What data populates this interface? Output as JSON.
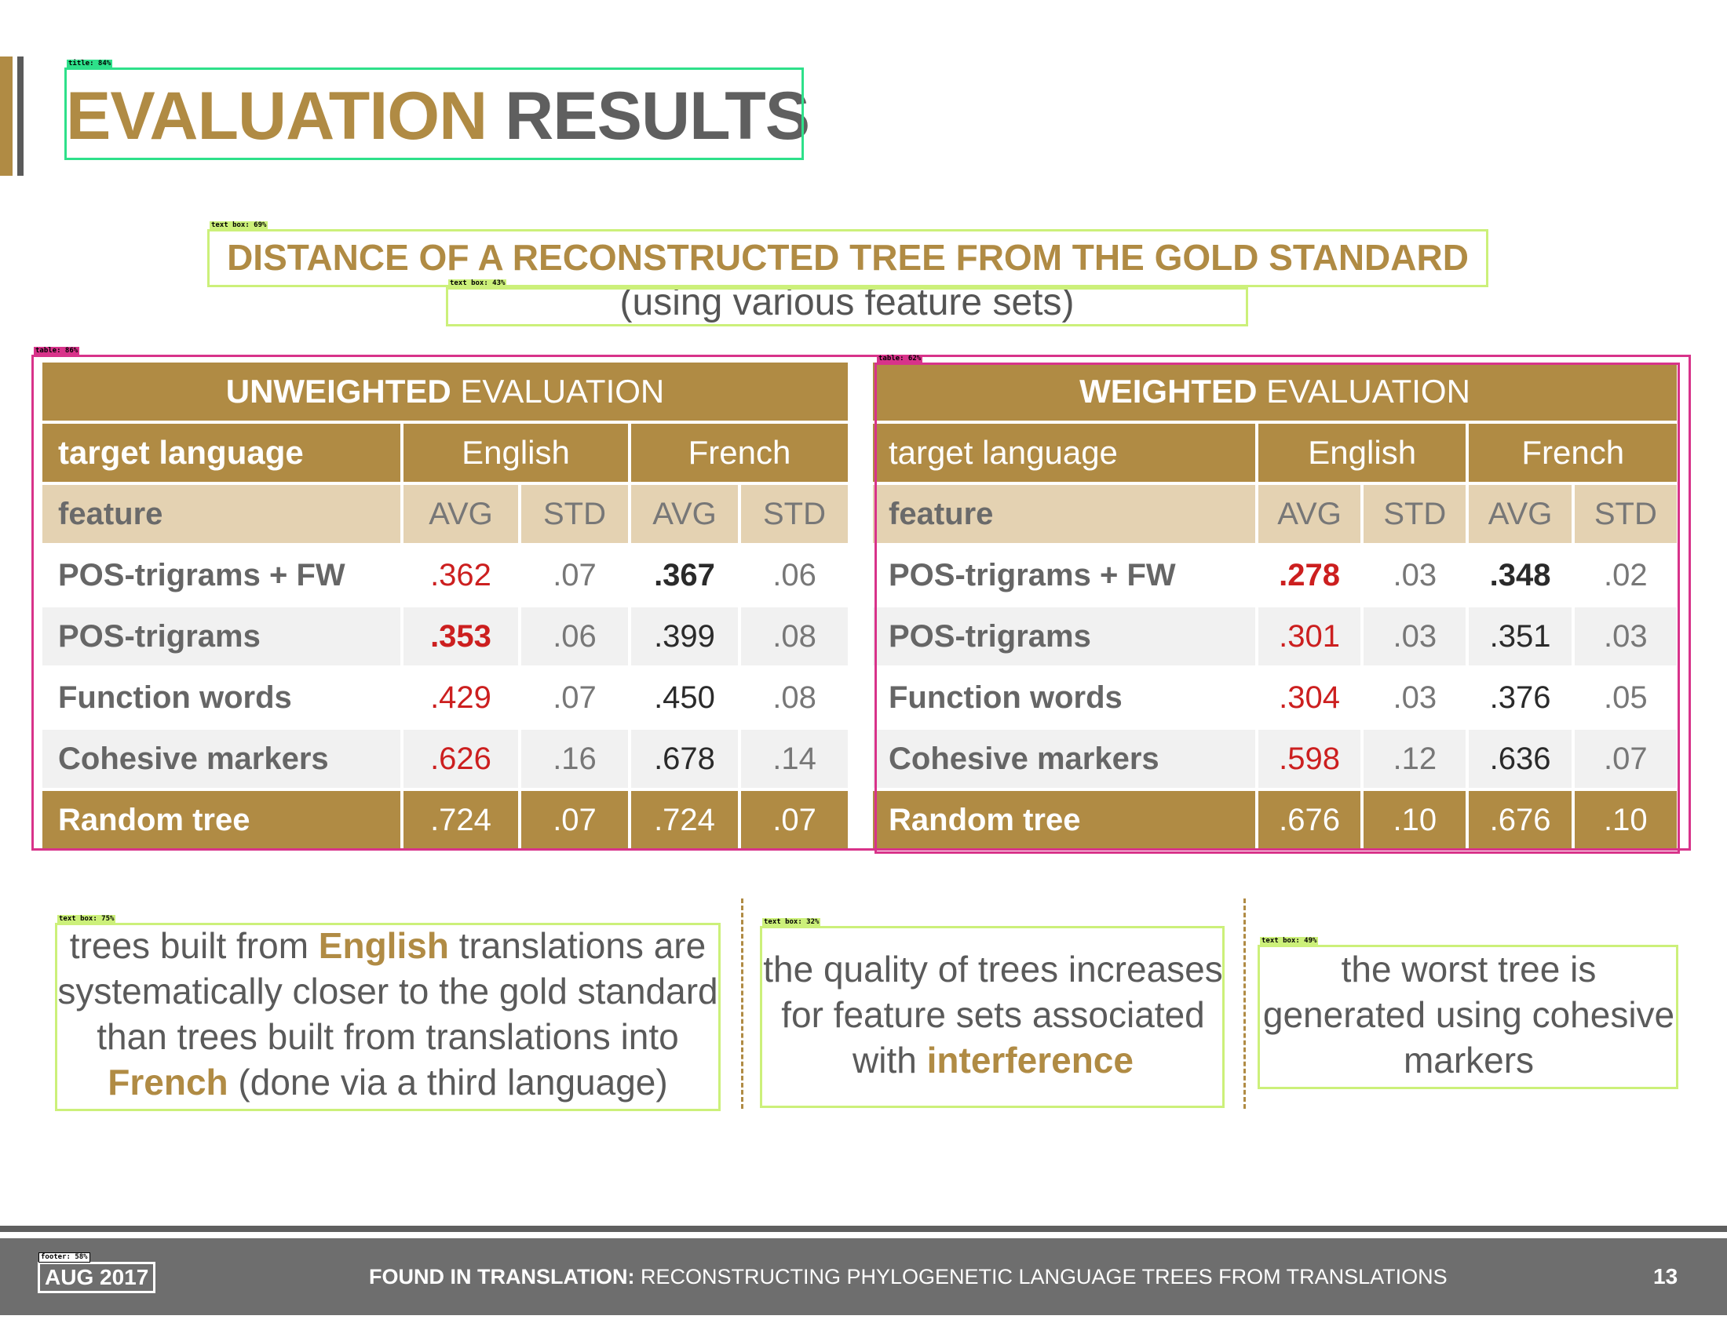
{
  "title": {
    "part1": "EVALUATION",
    "part2": "RESULTS"
  },
  "subtitle": "DISTANCE OF A RECONSTRUCTED TREE FROM THE GOLD STANDARD",
  "subtitle2": "(using various feature sets)",
  "annotations": {
    "title": "title: 84%",
    "subtitle": "text box: 69%",
    "subtitle2": "text box: 43%",
    "table_left": "table: 86%",
    "table_right": "table: 62%",
    "note1": "text box: 75%",
    "note2": "text box: 32%",
    "note3": "text box: 49%",
    "footer": "footer: 58%"
  },
  "tables": {
    "unweighted": {
      "header_bold": "UNWEIGHTED",
      "header_rest": " EVALUATION",
      "target_label": "target language",
      "lang1": "English",
      "lang2": "French",
      "feature_label": "feature",
      "avg": "AVG",
      "std": "STD",
      "rows": [
        {
          "name": "POS-trigrams + FW",
          "en_avg": ".362",
          "en_std": ".07",
          "fr_avg": ".367",
          "fr_std": ".06"
        },
        {
          "name": "POS-trigrams",
          "en_avg": ".353",
          "en_std": ".06",
          "fr_avg": ".399",
          "fr_std": ".08"
        },
        {
          "name": "Function words",
          "en_avg": ".429",
          "en_std": ".07",
          "fr_avg": ".450",
          "fr_std": ".08"
        },
        {
          "name": "Cohesive markers",
          "en_avg": ".626",
          "en_std": ".16",
          "fr_avg": ".678",
          "fr_std": ".14"
        }
      ],
      "random": {
        "name": "Random tree",
        "en_avg": ".724",
        "en_std": ".07",
        "fr_avg": ".724",
        "fr_std": ".07"
      }
    },
    "weighted": {
      "header_bold": "WEIGHTED",
      "header_rest": " EVALUATION",
      "target_label": "target language",
      "lang1": "English",
      "lang2": "French",
      "feature_label": "feature",
      "avg": "AVG",
      "std": "STD",
      "rows": [
        {
          "name": "POS-trigrams + FW",
          "en_avg": ".278",
          "en_std": ".03",
          "fr_avg": ".348",
          "fr_std": ".02"
        },
        {
          "name": "POS-trigrams",
          "en_avg": ".301",
          "en_std": ".03",
          "fr_avg": ".351",
          "fr_std": ".03"
        },
        {
          "name": "Function words",
          "en_avg": ".304",
          "en_std": ".03",
          "fr_avg": ".376",
          "fr_std": ".05"
        },
        {
          "name": "Cohesive markers",
          "en_avg": ".598",
          "en_std": ".12",
          "fr_avg": ".636",
          "fr_std": ".07"
        }
      ],
      "random": {
        "name": "Random tree",
        "en_avg": ".676",
        "en_std": ".10",
        "fr_avg": ".676",
        "fr_std": ".10"
      }
    }
  },
  "notes": {
    "note1": {
      "a": "trees built from ",
      "b": "English",
      "c": " translations are systematically closer to the gold standard than trees built from translations into ",
      "d": "French",
      "e": " (done via a third language)"
    },
    "note2": {
      "a": "the quality of trees increases for feature sets associated with ",
      "b": "interference"
    },
    "note3": {
      "a": "the worst tree is generated using cohesive markers"
    }
  },
  "footer": {
    "date": "AUG 2017",
    "title_bold": "FOUND IN TRANSLATION:",
    "title_rest": " RECONSTRUCTING PHYLOGENETIC LANGUAGE TREES FROM TRANSLATIONS",
    "page": "13"
  },
  "colors": {
    "gold": "#b08b44",
    "gray": "#5f5f5f",
    "red": "#cc1f1f",
    "ann_green": "#2ee08a",
    "ann_lime": "#ccf07a",
    "ann_magenta": "#d8338a"
  }
}
